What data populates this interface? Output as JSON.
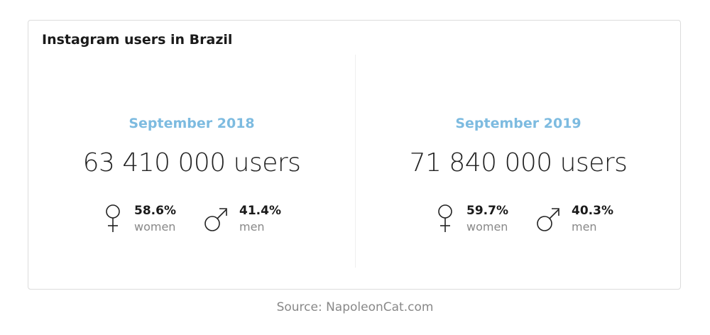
{
  "title": "Instagram users in Brazil",
  "panels": [
    {
      "period": "September 2018",
      "users": "63 410 000 users",
      "genders": [
        {
          "share": "58.6%",
          "label": "women"
        },
        {
          "share": "41.4%",
          "label": "men"
        }
      ]
    },
    {
      "period": "September 2019",
      "users": "71 840 000 users",
      "genders": [
        {
          "share": "59.7%",
          "label": "women"
        },
        {
          "share": "40.3%",
          "label": "men"
        }
      ]
    }
  ],
  "source": "Source: NapoleonCat.com"
}
